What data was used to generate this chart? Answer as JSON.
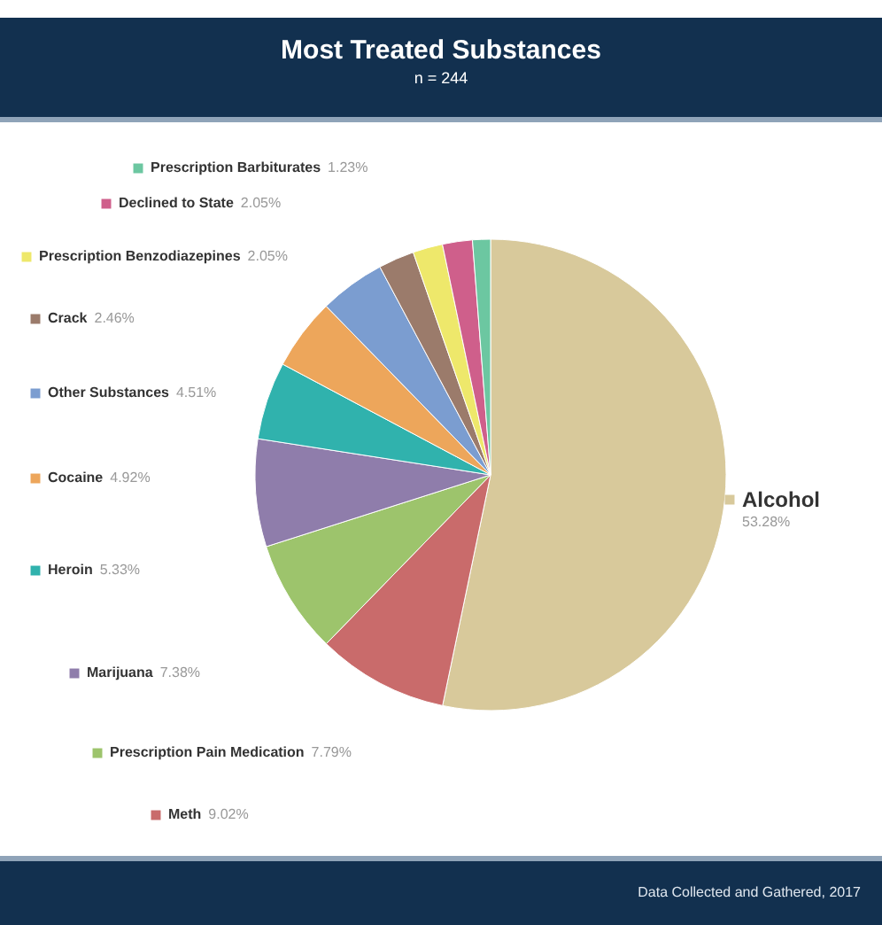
{
  "chart_data": {
    "type": "pie",
    "title": "Most Treated Substances",
    "subtitle": "n = 244",
    "categories": [
      "Alcohol",
      "Meth",
      "Prescription Pain Medication",
      "Marijuana",
      "Heroin",
      "Cocaine",
      "Other Substances",
      "Crack",
      "Prescription Benzodiazepines",
      "Declined to State",
      "Prescription Barbiturates"
    ],
    "values": [
      53.28,
      9.02,
      7.79,
      7.38,
      5.33,
      4.92,
      4.51,
      2.46,
      2.05,
      2.05,
      1.23
    ],
    "value_labels": [
      "53.28%",
      "9.02%",
      "7.79%",
      "7.38%",
      "5.33%",
      "4.92%",
      "4.51%",
      "2.46%",
      "2.05%",
      "2.05%",
      "1.23%"
    ],
    "colors": [
      "#d8c99b",
      "#c96b6b",
      "#9dc46c",
      "#8f7dab",
      "#30b2ad",
      "#eda65b",
      "#7b9dd0",
      "#9b7b6b",
      "#eee86b",
      "#cf5f8b",
      "#6cc7a1"
    ],
    "legend": "left",
    "annotations": [
      "Data Collected and Gathered, 2017"
    ]
  }
}
